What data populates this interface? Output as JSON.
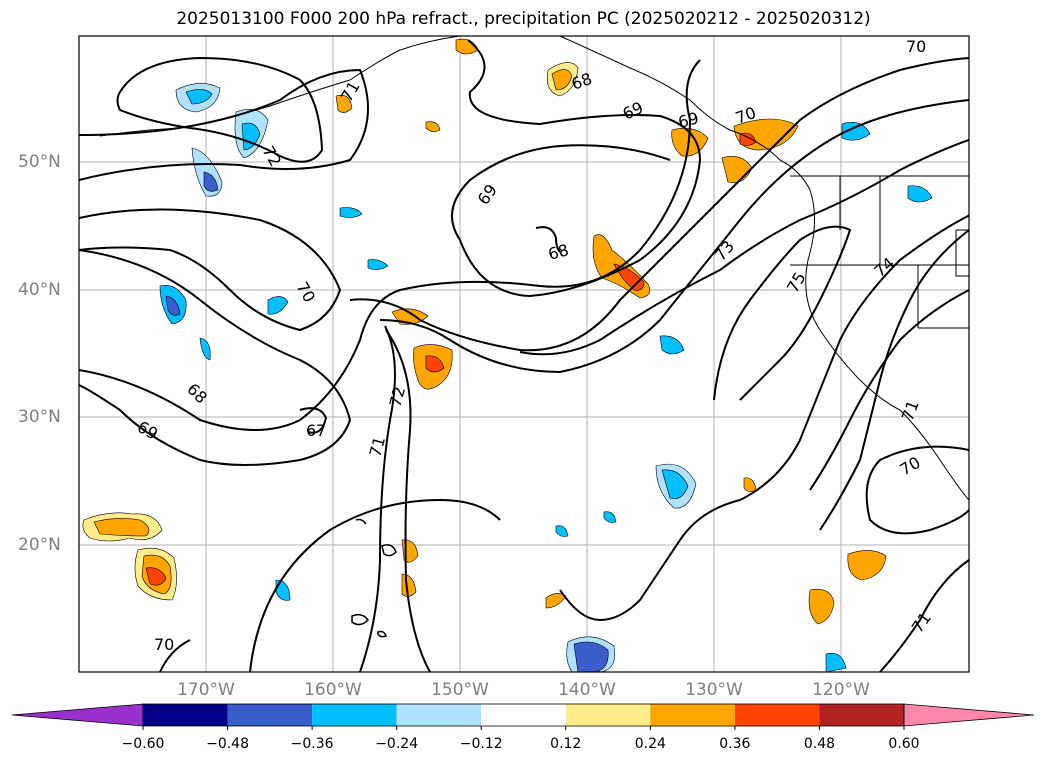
{
  "title": "2025013100 F000 200 hPa refract., precipitation PC (2025020212 - 2025020312)",
  "lat_labels": [
    "50°N",
    "40°N",
    "30°N",
    "20°N"
  ],
  "lon_labels": [
    "170°W",
    "160°W",
    "150°W",
    "140°W",
    "130°W",
    "120°W"
  ],
  "contour_labels": [
    "70",
    "71",
    "72",
    "69",
    "68",
    "69",
    "70",
    "69",
    "68",
    "73",
    "74",
    "75",
    "70",
    "68",
    "69",
    "67",
    "71",
    "72",
    "70",
    "71",
    "70",
    "71"
  ],
  "colorbar": {
    "ticks": [
      "−0.60",
      "−0.48",
      "−0.36",
      "−0.24",
      "−0.12",
      "0.12",
      "0.24",
      "0.36",
      "0.48",
      "0.60"
    ],
    "colors": [
      "#9932cc",
      "#00008b",
      "#3a5fcd",
      "#00bfff",
      "#b0e2ff",
      "#ffffff",
      "#ffec8b",
      "#ffa500",
      "#ff4500",
      "#b22222",
      "#ff88aa"
    ],
    "extend_low_color": "#9932cc",
    "extend_high_color": "#ff88aa"
  }
}
